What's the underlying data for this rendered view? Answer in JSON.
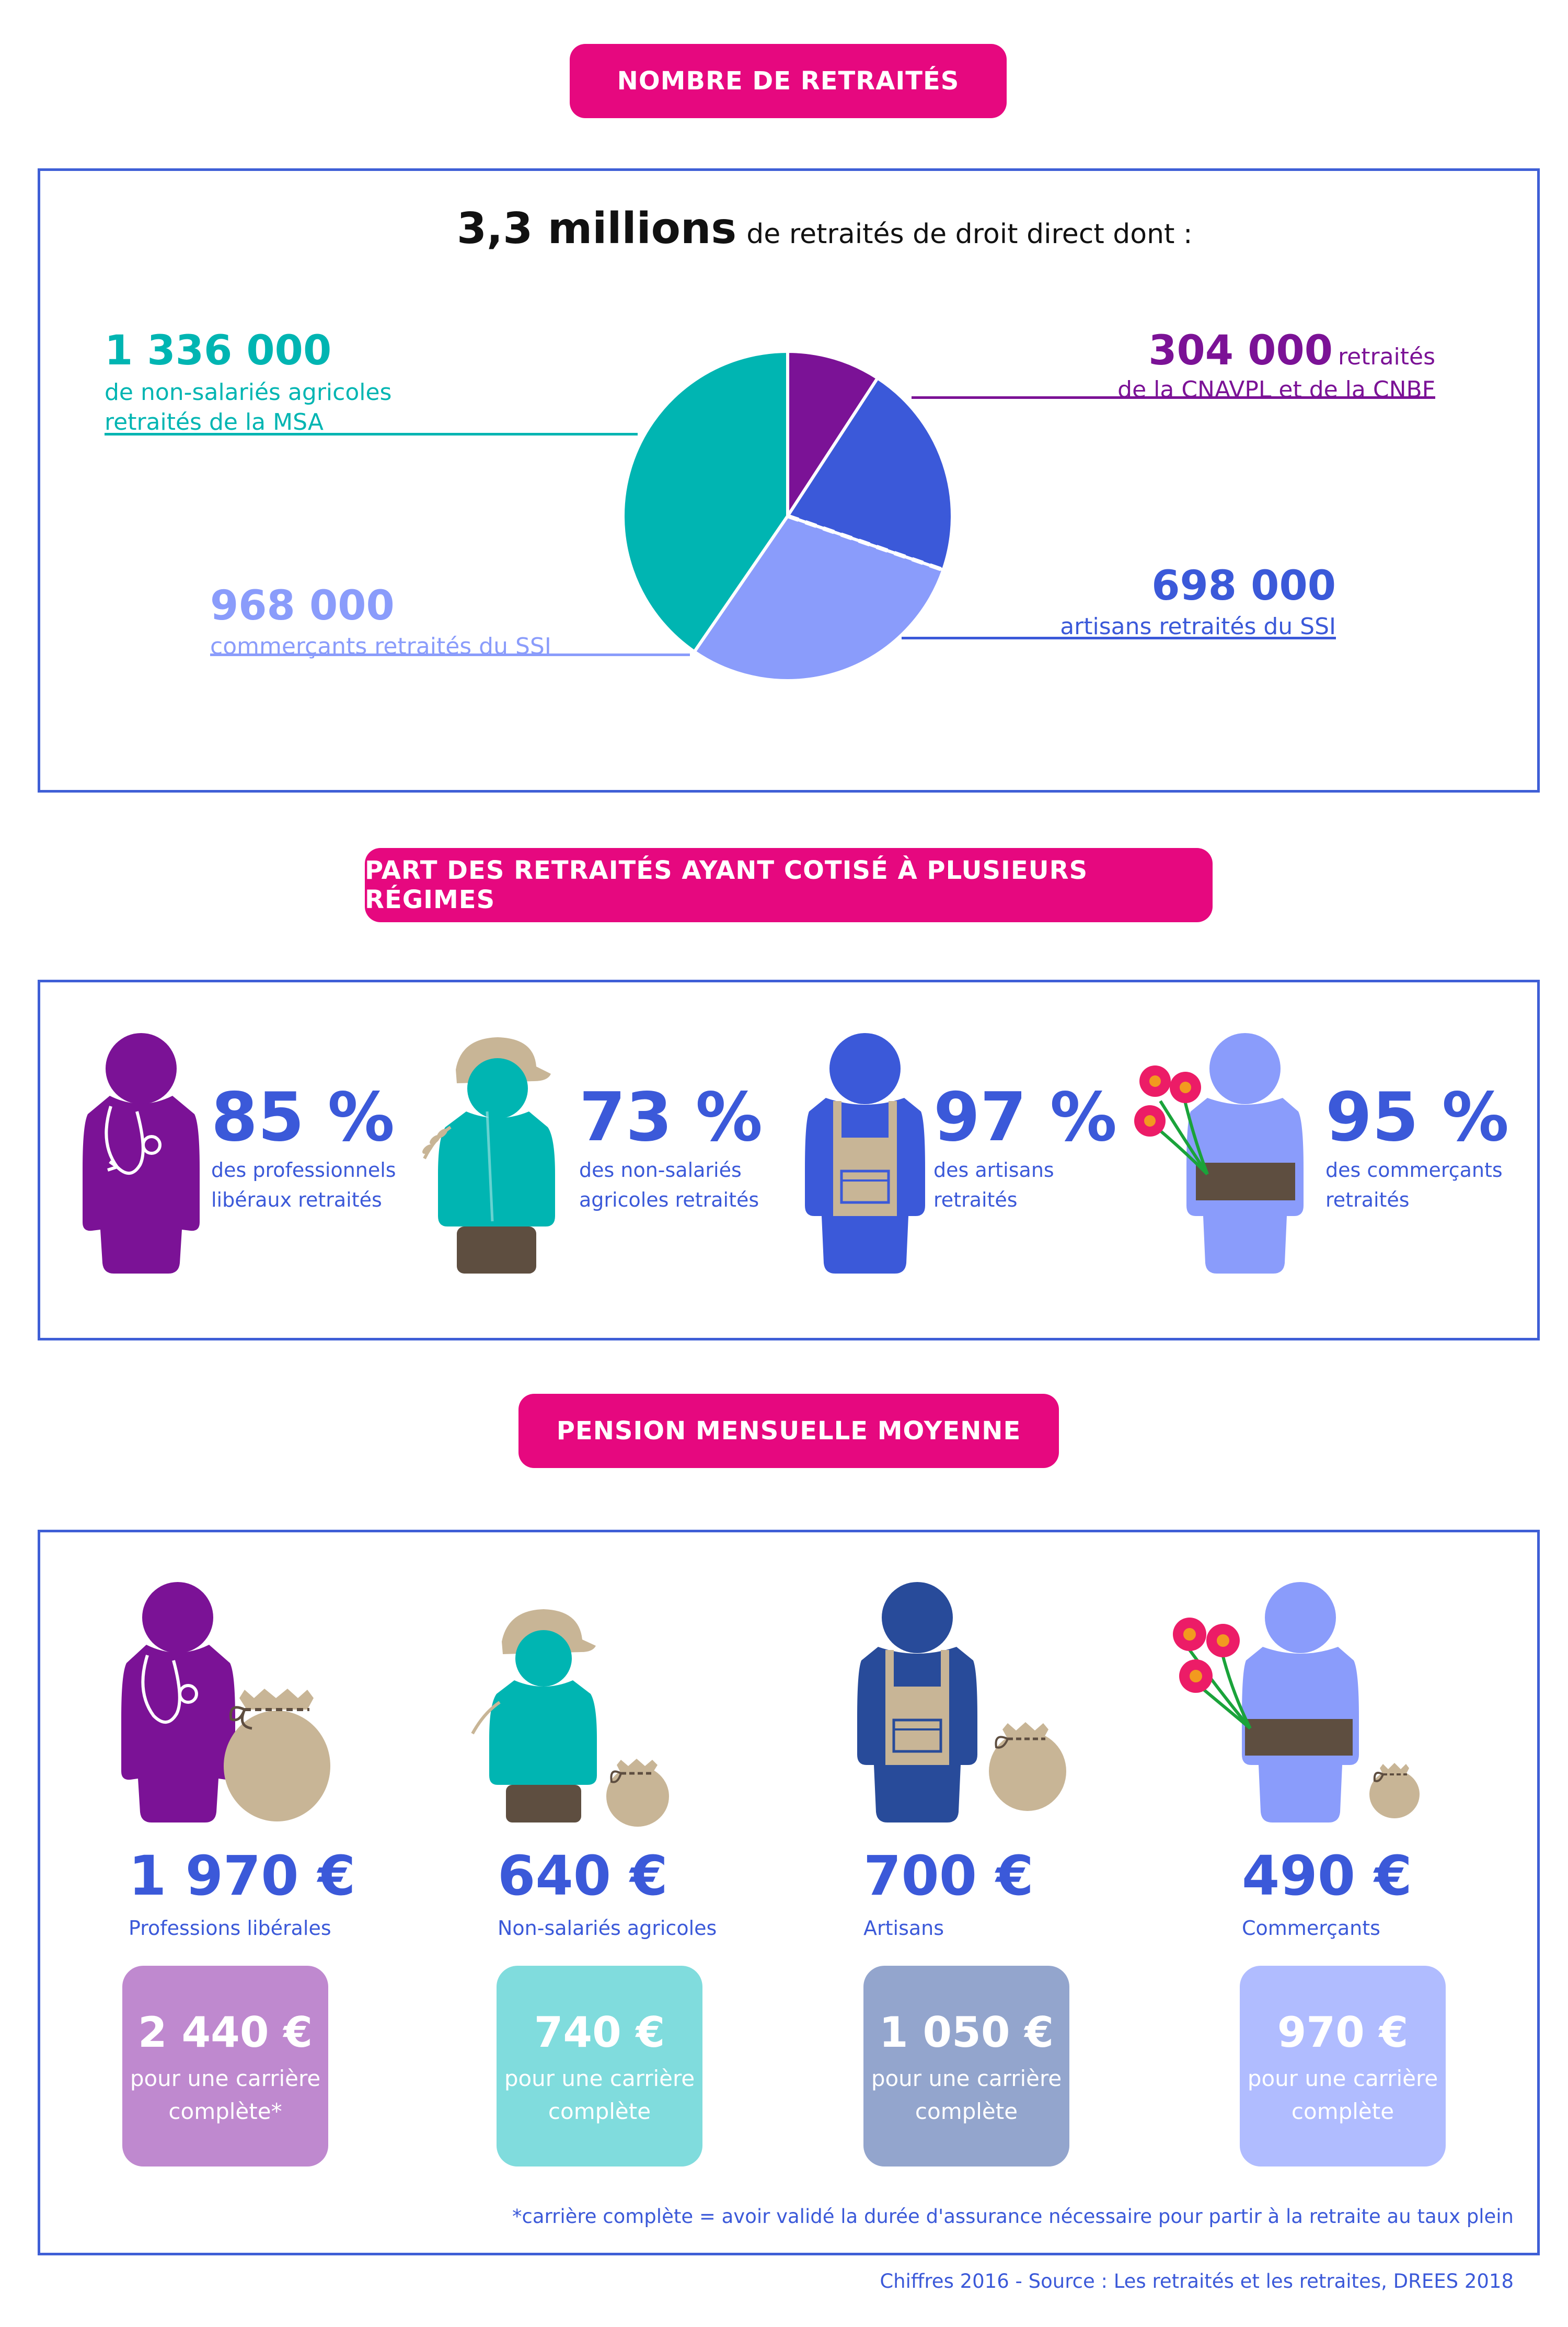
{
  "sections": {
    "retirees_title": "NOMBRE DE RETRAITÉS",
    "multi_title": "PART DES RETRAITÉS AYANT COTISÉ À PLUSIEURS RÉGIMES",
    "pension_title": "PENSION MENSUELLE MOYENNE"
  },
  "total": {
    "value": "3,3 millions",
    "label": "de retraités de droit direct dont :"
  },
  "pie_labels": {
    "msa": {
      "value": "1 336 000",
      "line1": "de non-salariés agricoles",
      "line2": "retraités de la MSA"
    },
    "cnavpl": {
      "value": "304 000",
      "suffix": "retraités",
      "line1": "de la CNAVPL et de la CNBF"
    },
    "artisans": {
      "value": "698 000",
      "line1": "artisans retraités du SSI"
    },
    "commercants": {
      "value": "968 000",
      "line1": "commerçants retraités du SSI"
    }
  },
  "chart_data": [
    {
      "type": "pie",
      "title": "NOMBRE DE RETRAITÉS",
      "total_label": "3,3 millions de retraités de droit direct dont :",
      "slices": [
        {
          "label": "de la CNAVPL et de la CNBF",
          "value": 304000,
          "display": "304 000",
          "color": "#7b1296"
        },
        {
          "label": "artisans retraités du SSI",
          "value": 698000,
          "display": "698 000",
          "color": "#3b59d9"
        },
        {
          "label": "commerçants retraités du SSI",
          "value": 968000,
          "display": "968 000",
          "color": "#8a9cfb"
        },
        {
          "label": "de non-salariés agricoles retraités de la MSA",
          "value": 1336000,
          "display": "1 336 000",
          "color": "#00b5b2"
        }
      ]
    },
    {
      "type": "table",
      "title": "PART DES RETRAITÉS AYANT COTISÉ À PLUSIEURS RÉGIMES",
      "rows": [
        {
          "value": 85,
          "display": "85 %",
          "line1": "des professionnels",
          "line2": "libéraux retraités"
        },
        {
          "value": 73,
          "display": "73 %",
          "line1": "des non-salariés",
          "line2": "agricoles retraités"
        },
        {
          "value": 97,
          "display": "97 %",
          "line1": "des artisans",
          "line2": "retraités"
        },
        {
          "value": 95,
          "display": "95 %",
          "line1": "des commerçants",
          "line2": "retraités"
        }
      ]
    },
    {
      "type": "table",
      "title": "PENSION MENSUELLE MOYENNE",
      "rows": [
        {
          "category": "Professions libérales",
          "avg": 1970,
          "avg_display": "1 970 €",
          "full": 2440,
          "full_display": "2 440 €",
          "full_line1": "pour une carrière",
          "full_line2": "complète*"
        },
        {
          "category": "Non-salariés agricoles",
          "avg": 640,
          "avg_display": "640 €",
          "full": 740,
          "full_display": "740 €",
          "full_line1": "pour une carrière",
          "full_line2": "complète"
        },
        {
          "category": "Artisans",
          "avg": 700,
          "avg_display": "700 €",
          "full": 1050,
          "full_display": "1 050 €",
          "full_line1": "pour une carrière",
          "full_line2": "complète"
        },
        {
          "category": "Commerçants",
          "avg": 490,
          "avg_display": "490 €",
          "full": 970,
          "full_display": "970 €",
          "full_line1": "pour une carrière",
          "full_line2": "complète"
        }
      ]
    }
  ],
  "footnote": "*carrière complète = avoir validé la durée d'assurance nécessaire pour partir à la retraite au taux plein",
  "source": "Chiffres 2016 - Source : Les retraités et les retraites, DREES 2018",
  "colors": {
    "pink": "#e6087f",
    "blue": "#3b59d9",
    "purple": "#7b1296",
    "teal": "#00b5b2",
    "lightblue": "#8a9cfb",
    "navy": "#284b9a",
    "beige": "#c8b596",
    "brown": "#5e4e40",
    "flower": "#ec1c67"
  }
}
